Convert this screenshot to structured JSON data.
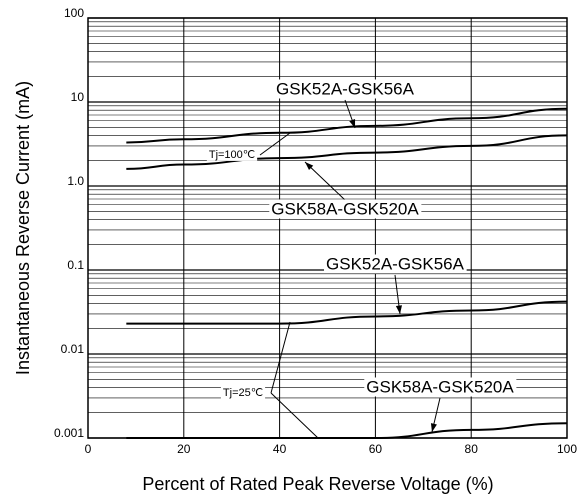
{
  "chart_data": {
    "type": "line",
    "xlabel": "Percent of Rated Peak Reverse Voltage (%)",
    "ylabel": "Instantaneous Reverse Current (mA)",
    "x": [
      8,
      20,
      40,
      60,
      80,
      100
    ],
    "series": [
      {
        "color": "#000000",
        "values": [
          3.3,
          3.6,
          4.3,
          5.2,
          6.4,
          8.3
        ]
      },
      {
        "color": "#000000",
        "values": [
          1.6,
          1.8,
          2.15,
          2.5,
          3.0,
          4.0
        ]
      },
      {
        "color": "#000000",
        "values": [
          0.023,
          0.023,
          0.023,
          0.028,
          0.033,
          0.042
        ]
      },
      {
        "color": "#000000",
        "values": [
          0.001,
          0.001,
          0.001,
          0.001,
          0.00125,
          0.0015
        ]
      }
    ],
    "annotations": [
      "GSK52A-GSK56A",
      "Tj=100℃",
      "GSK58A-GSK520A",
      "GSK52A-GSK56A",
      "Tj=25℃",
      "GSK58A-GSK520A"
    ],
    "xlim": [
      0,
      100
    ],
    "xticks": [
      0,
      20,
      40,
      60,
      80,
      100
    ],
    "ylim": [
      0.001,
      100
    ],
    "yticks": [
      0.001,
      0.01,
      0.1,
      {
        "value": 1,
        "label": "1.0"
      },
      10,
      100
    ],
    "ylog": true,
    "grid": true
  }
}
